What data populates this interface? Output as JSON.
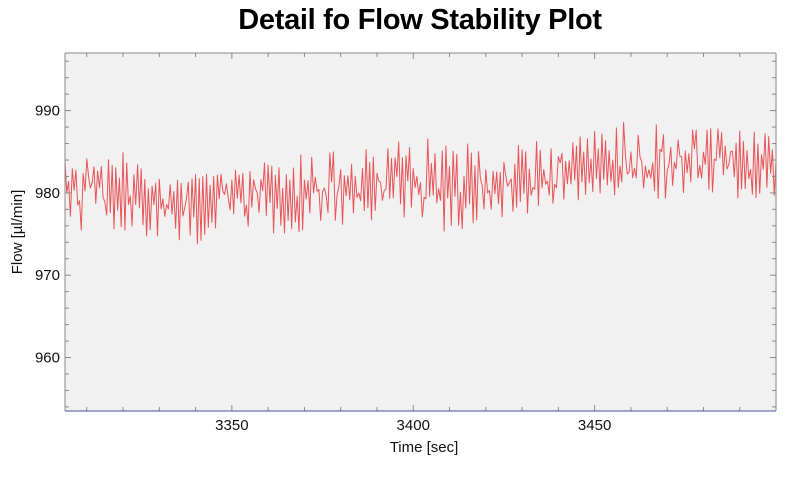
{
  "chart_data": {
    "type": "line",
    "title": "Detail fo Flow Stability Plot",
    "xlabel": "Time [sec]",
    "ylabel": "Flow [µl/min]",
    "xlim": [
      3304,
      3500
    ],
    "ylim": [
      953.5,
      997
    ],
    "x_ticks": [
      3350,
      3400,
      3450
    ],
    "y_ticks": [
      960,
      970,
      980,
      990
    ],
    "x_minor_tick_step": 10,
    "y_minor_tick_step": 2,
    "grid": false,
    "legend": null,
    "series": [
      {
        "name": "Flow",
        "color": "#e8383d",
        "description": "High-frequency oscillating flow signal (~1 sample per 0.5 s) with peak-to-peak amplitude ~8-12 µl/min; mean drifts from ~980 at t=3304 to ~979 near t=3340, ~980.5 at t=3400, ~983 at t=3450 and ~984 near t=3500",
        "x": [
          3304,
          3310,
          3320,
          3330,
          3338,
          3345,
          3350,
          3360,
          3370,
          3380,
          3390,
          3400,
          3410,
          3420,
          3428,
          3435,
          3440,
          3450,
          3460,
          3470,
          3480,
          3490,
          3500
        ],
        "mean": [
          980.2,
          980.5,
          980.0,
          979.8,
          979.0,
          979.6,
          979.8,
          979.9,
          980.0,
          980.4,
          980.6,
          980.6,
          980.5,
          981.0,
          980.8,
          981.8,
          982.3,
          982.8,
          983.5,
          983.9,
          984.2,
          983.8,
          984.0
        ],
        "max": [
          986,
          986,
          985,
          985,
          983,
          984,
          984,
          984,
          985,
          985,
          986,
          988,
          986,
          986,
          986,
          987,
          987,
          988,
          989,
          988,
          988,
          988,
          989
        ],
        "min": [
          976,
          975,
          975,
          974,
          972.5,
          975,
          975,
          975,
          975,
          976,
          976,
          976,
          975,
          976,
          977,
          978,
          978,
          979,
          980,
          979,
          980,
          979,
          979
        ]
      }
    ]
  },
  "colors": {
    "plot_background": "#f1f1f1",
    "frame": "#8a8a8a",
    "x_axis_line": "#6b6fb0",
    "trace": "#e8383d"
  }
}
